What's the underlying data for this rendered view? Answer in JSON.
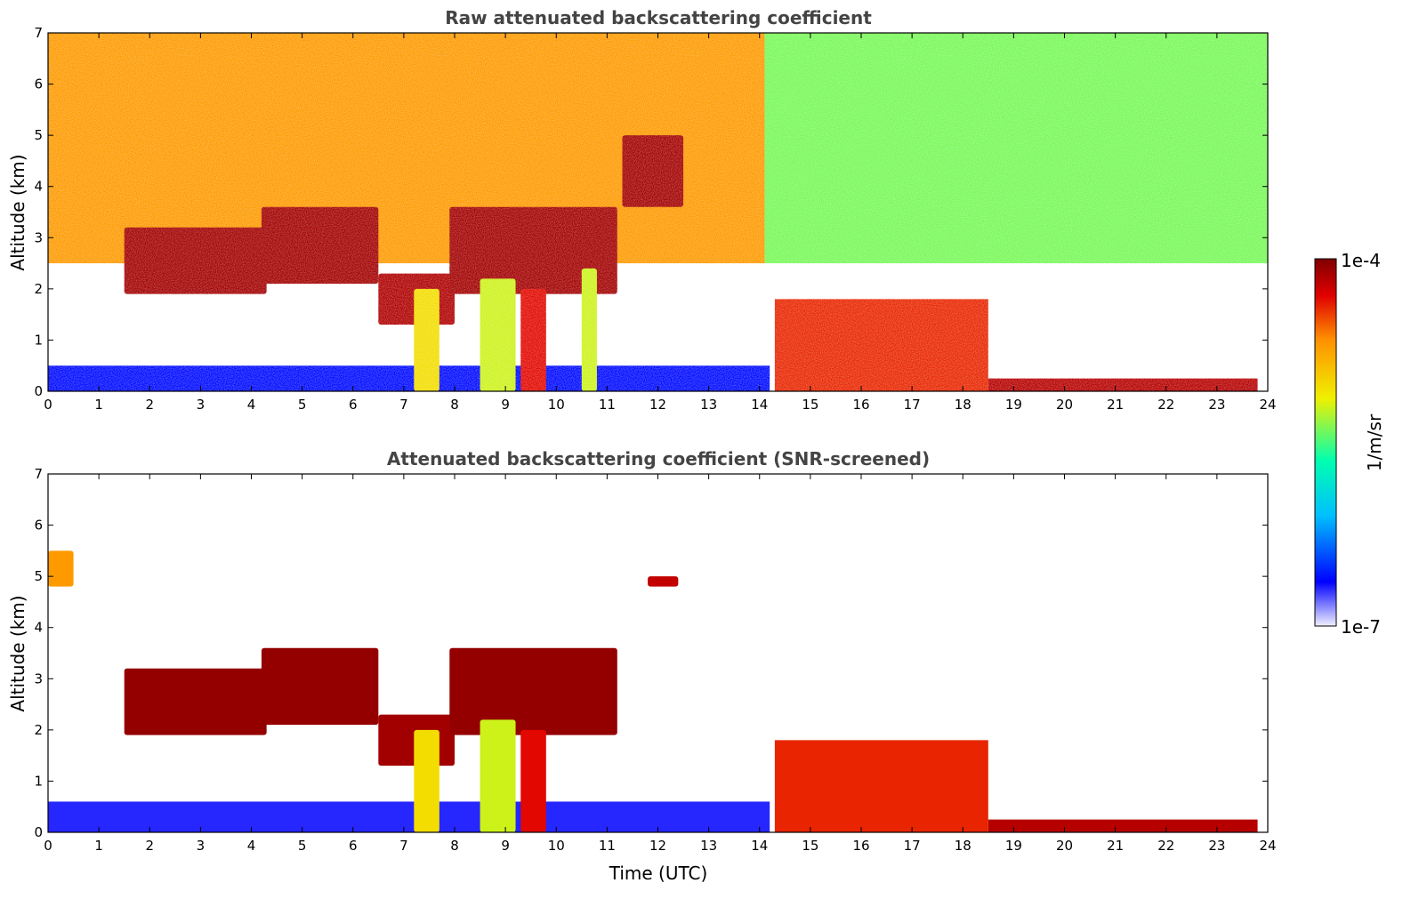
{
  "chart_data": [
    {
      "type": "heatmap",
      "title": "Raw attenuated backscattering coefficient",
      "xlabel": "",
      "ylabel": "Altitude (km)",
      "xlim": [
        0,
        24
      ],
      "ylim": [
        0,
        7
      ],
      "xticks": [
        "0",
        "1",
        "2",
        "3",
        "4",
        "5",
        "6",
        "7",
        "8",
        "9",
        "10",
        "11",
        "12",
        "13",
        "14",
        "15",
        "16",
        "17",
        "18",
        "19",
        "20",
        "21",
        "22",
        "23",
        "24"
      ],
      "yticks": [
        "0",
        "1",
        "2",
        "3",
        "4",
        "5",
        "6",
        "7"
      ],
      "layers": [
        {
          "name": "boundary layer (low)",
          "x": [
            0,
            14.2
          ],
          "y": [
            0,
            0.5
          ],
          "level": 0.15
        },
        {
          "name": "noise background (upper)",
          "x": [
            0,
            14.1
          ],
          "y": [
            2.5,
            7
          ],
          "level": 0.7
        },
        {
          "name": "noise background (upper, after 14 UTC)",
          "x": [
            14.1,
            24
          ],
          "y": [
            2.5,
            7
          ],
          "level": 0.5
        },
        {
          "name": "dense layer",
          "x": [
            14.3,
            18.5
          ],
          "y": [
            0,
            1.8
          ],
          "level": 0.82
        },
        {
          "name": "surface layer",
          "x": [
            18.5,
            23.8
          ],
          "y": [
            0,
            0.25
          ],
          "level": 0.92
        }
      ],
      "features": [
        {
          "name": "cloud layer",
          "x": [
            1.5,
            4.3
          ],
          "y": [
            1.9,
            3.2
          ],
          "level": 0.95
        },
        {
          "name": "cloud layer",
          "x": [
            4.2,
            6.5
          ],
          "y": [
            2.1,
            3.6
          ],
          "level": 0.95
        },
        {
          "name": "cloud layer",
          "x": [
            6.5,
            8.0
          ],
          "y": [
            1.3,
            2.3
          ],
          "level": 0.93
        },
        {
          "name": "cloud layer",
          "x": [
            7.9,
            11.2
          ],
          "y": [
            1.9,
            3.6
          ],
          "level": 0.95
        },
        {
          "name": "cloud layer",
          "x": [
            11.3,
            12.5
          ],
          "y": [
            3.6,
            5.0
          ],
          "level": 0.95
        },
        {
          "name": "fall streak",
          "x": [
            7.2,
            7.7
          ],
          "y": [
            0,
            2.0
          ],
          "level": 0.6
        },
        {
          "name": "fall streak",
          "x": [
            8.5,
            9.2
          ],
          "y": [
            0,
            2.2
          ],
          "level": 0.55
        },
        {
          "name": "fall streak",
          "x": [
            9.3,
            9.8
          ],
          "y": [
            0,
            2.0
          ],
          "level": 0.85
        },
        {
          "name": "fall streak",
          "x": [
            10.5,
            10.8
          ],
          "y": [
            0,
            2.4
          ],
          "level": 0.55
        }
      ]
    },
    {
      "type": "heatmap",
      "title": "Attenuated backscattering coefficient (SNR-screened)",
      "xlabel": "Time (UTC)",
      "ylabel": "Altitude (km)",
      "xlim": [
        0,
        24
      ],
      "ylim": [
        0,
        7
      ],
      "xticks": [
        "0",
        "1",
        "2",
        "3",
        "4",
        "5",
        "6",
        "7",
        "8",
        "9",
        "10",
        "11",
        "12",
        "13",
        "14",
        "15",
        "16",
        "17",
        "18",
        "19",
        "20",
        "21",
        "22",
        "23",
        "24"
      ],
      "yticks": [
        "0",
        "1",
        "2",
        "3",
        "4",
        "5",
        "6",
        "7"
      ],
      "layers": [
        {
          "name": "boundary layer",
          "x": [
            0,
            14.2
          ],
          "y": [
            0,
            0.6
          ],
          "level": 0.12
        },
        {
          "name": "dense layer",
          "x": [
            14.3,
            18.5
          ],
          "y": [
            0,
            1.8
          ],
          "level": 0.82
        },
        {
          "name": "surface layer",
          "x": [
            18.5,
            23.8
          ],
          "y": [
            0,
            0.25
          ],
          "level": 0.92
        }
      ],
      "features": [
        {
          "name": "cloud layer",
          "x": [
            0,
            0.5
          ],
          "y": [
            4.8,
            5.5
          ],
          "level": 0.7
        },
        {
          "name": "cloud layer",
          "x": [
            1.5,
            4.3
          ],
          "y": [
            1.9,
            3.2
          ],
          "level": 0.97
        },
        {
          "name": "cloud layer",
          "x": [
            4.2,
            6.5
          ],
          "y": [
            2.1,
            3.6
          ],
          "level": 0.97
        },
        {
          "name": "cloud layer",
          "x": [
            6.5,
            8.0
          ],
          "y": [
            1.3,
            2.3
          ],
          "level": 0.95
        },
        {
          "name": "cloud layer",
          "x": [
            7.9,
            11.2
          ],
          "y": [
            1.9,
            3.6
          ],
          "level": 0.97
        },
        {
          "name": "cloud patch",
          "x": [
            11.8,
            12.4
          ],
          "y": [
            4.8,
            5.0
          ],
          "level": 0.9
        },
        {
          "name": "fall streak",
          "x": [
            7.2,
            7.7
          ],
          "y": [
            0,
            2.0
          ],
          "level": 0.6
        },
        {
          "name": "fall streak",
          "x": [
            8.5,
            9.2
          ],
          "y": [
            0,
            2.2
          ],
          "level": 0.55
        },
        {
          "name": "fall streak",
          "x": [
            9.3,
            9.8
          ],
          "y": [
            0,
            2.0
          ],
          "level": 0.85
        }
      ]
    }
  ],
  "colorbar": {
    "label": "1/m/sr",
    "min_label": "1e-7",
    "max_label": "1e-4",
    "scale": "log",
    "colormap": [
      "#f0f0ff",
      "#0000ff",
      "#00bfff",
      "#00ffb0",
      "#f0f000",
      "#ff9000",
      "#e00000",
      "#800000"
    ]
  }
}
